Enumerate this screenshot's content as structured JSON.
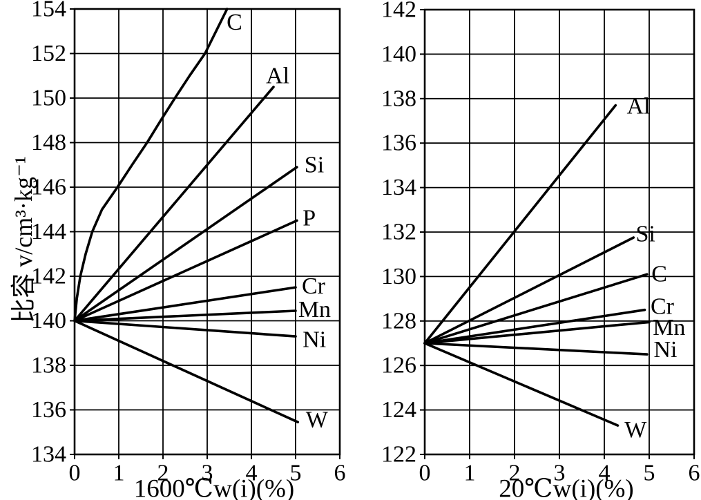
{
  "page": {
    "background": "#ffffff",
    "line_color": "#000000"
  },
  "y_axis_title": "比容 v/cm³·kg⁻¹",
  "chart_data": [
    {
      "id": "chart-1600C",
      "type": "line",
      "title": "",
      "xlabel": "1600℃w(i)(%)",
      "ylabel": "比容 v/cm³·kg⁻¹",
      "xlim": [
        0,
        6
      ],
      "ylim": [
        134,
        154
      ],
      "x_ticks": [
        0,
        1,
        2,
        3,
        4,
        5,
        6
      ],
      "y_ticks": [
        134,
        136,
        138,
        140,
        142,
        144,
        146,
        148,
        150,
        152,
        154
      ],
      "grid": true,
      "legend_position": "inline-labels",
      "origin_value": 140,
      "series": [
        {
          "name": "C",
          "points": [
            [
              0,
              140
            ],
            [
              0.05,
              141
            ],
            [
              0.13,
              142
            ],
            [
              0.25,
              143
            ],
            [
              0.4,
              144
            ],
            [
              0.62,
              145
            ],
            [
              0.97,
              146
            ],
            [
              1.3,
              147
            ],
            [
              1.64,
              148
            ],
            [
              1.95,
              149
            ],
            [
              2.27,
              150
            ],
            [
              2.6,
              151
            ],
            [
              2.95,
              152
            ],
            [
              3.2,
              153
            ],
            [
              3.45,
              154
            ]
          ],
          "label_pos": [
            3.44,
            153.4
          ]
        },
        {
          "name": "Al",
          "points": [
            [
              0,
              140
            ],
            [
              4.5,
              150.5
            ]
          ],
          "label_pos": [
            4.33,
            151.0
          ]
        },
        {
          "name": "Si",
          "points": [
            [
              0,
              140
            ],
            [
              5.03,
              146.9
            ]
          ],
          "label_pos": [
            5.2,
            147.0
          ]
        },
        {
          "name": "P",
          "points": [
            [
              0,
              140
            ],
            [
              5.03,
              144.5
            ]
          ],
          "label_pos": [
            5.16,
            144.6
          ]
        },
        {
          "name": "Cr",
          "points": [
            [
              0,
              140
            ],
            [
              5.0,
              141.5
            ]
          ],
          "label_pos": [
            5.14,
            141.55
          ]
        },
        {
          "name": "Mn",
          "points": [
            [
              0,
              140
            ],
            [
              5.0,
              140.45
            ]
          ],
          "label_pos": [
            5.06,
            140.5
          ]
        },
        {
          "name": "Ni",
          "points": [
            [
              0,
              140
            ],
            [
              5.0,
              139.3
            ]
          ],
          "label_pos": [
            5.16,
            139.15
          ]
        },
        {
          "name": "W",
          "points": [
            [
              0,
              140
            ],
            [
              5.05,
              135.45
            ]
          ],
          "label_pos": [
            5.23,
            135.55
          ]
        }
      ]
    },
    {
      "id": "chart-20C",
      "type": "line",
      "title": "",
      "xlabel": "20℃w(i)(%)",
      "ylabel": "比容 v/cm³·kg⁻¹",
      "xlim": [
        0,
        6
      ],
      "ylim": [
        122,
        142
      ],
      "x_ticks": [
        0,
        1,
        2,
        3,
        4,
        5,
        6
      ],
      "y_ticks": [
        122,
        124,
        126,
        128,
        130,
        132,
        134,
        136,
        138,
        140,
        142
      ],
      "grid": true,
      "legend_position": "inline-labels",
      "origin_value": 127,
      "series": [
        {
          "name": "Al",
          "points": [
            [
              0,
              127
            ],
            [
              4.25,
              137.7
            ]
          ],
          "label_pos": [
            4.5,
            137.65
          ]
        },
        {
          "name": "Si",
          "points": [
            [
              0,
              127
            ],
            [
              4.65,
              131.75
            ]
          ],
          "label_pos": [
            4.7,
            131.9
          ]
        },
        {
          "name": "C",
          "points": [
            [
              0,
              127
            ],
            [
              4.95,
              130.1
            ]
          ],
          "label_pos": [
            5.05,
            130.1
          ]
        },
        {
          "name": "Cr",
          "points": [
            [
              0,
              127
            ],
            [
              4.9,
              128.5
            ]
          ],
          "label_pos": [
            5.03,
            128.65
          ]
        },
        {
          "name": "Mn",
          "points": [
            [
              0,
              127
            ],
            [
              5.0,
              127.95
            ]
          ],
          "label_pos": [
            5.08,
            127.7
          ]
        },
        {
          "name": "Ni",
          "points": [
            [
              0,
              127
            ],
            [
              4.95,
              126.5
            ]
          ],
          "label_pos": [
            5.1,
            126.7
          ]
        },
        {
          "name": "W",
          "points": [
            [
              0,
              127
            ],
            [
              4.3,
              123.3
            ]
          ],
          "label_pos": [
            4.45,
            123.1
          ]
        }
      ]
    }
  ]
}
